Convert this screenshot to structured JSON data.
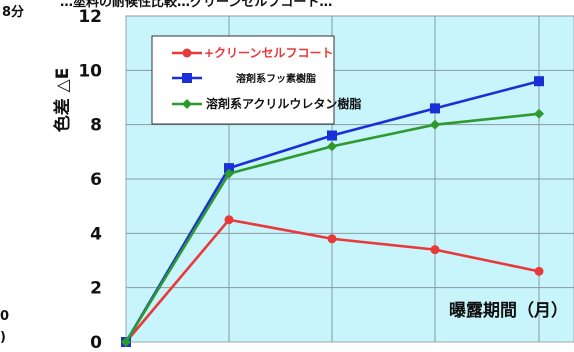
{
  "header_fragment": "8分",
  "top_text": "…塗料の耐候性比較…グリーンセルフコート…",
  "left_fragments": [
    "0",
    ")"
  ],
  "chart_data": {
    "type": "line",
    "title": "",
    "xlabel": "曝露期間（月）",
    "ylabel": "色差 △E",
    "ylim": [
      0,
      12
    ],
    "yticks": [
      0,
      2,
      4,
      6,
      8,
      10,
      12
    ],
    "x": [
      0,
      1,
      2,
      3,
      4
    ],
    "grid": true,
    "legend_position": "top-left",
    "series": [
      {
        "name": "+クリーンセルフコート",
        "color": "#e83a3a",
        "marker": "circle",
        "values": [
          0,
          4.5,
          3.8,
          3.4,
          2.6
        ]
      },
      {
        "name": "溶剤系フッ素樹脂",
        "color": "#1a2fd8",
        "marker": "square",
        "values": [
          0,
          6.4,
          7.6,
          8.6,
          9.6
        ]
      },
      {
        "name": "溶剤系アクリルウレタン樹脂",
        "color": "#2e9a2e",
        "marker": "diamond",
        "values": [
          0,
          6.2,
          7.2,
          8.0,
          8.4
        ]
      }
    ]
  }
}
